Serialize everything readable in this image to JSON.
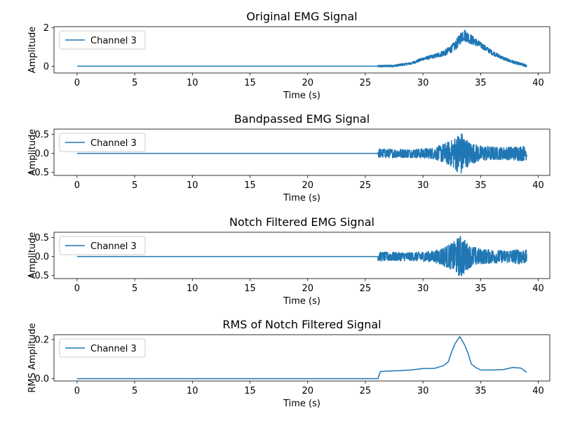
{
  "figure": {
    "background": "#ffffff",
    "line_color": "#1f77b4"
  },
  "chart_data": [
    {
      "type": "line",
      "title": "Original EMG Signal",
      "xlabel": "Time (s)",
      "ylabel": "Amplitude",
      "xlim": [
        -2,
        41
      ],
      "ylim": [
        -0.35,
        2.05
      ],
      "xticks": [
        0,
        5,
        10,
        15,
        20,
        25,
        30,
        35,
        40
      ],
      "yticks": [
        0,
        2
      ],
      "legend": {
        "position": "upper-left",
        "entries": [
          "Channel 3"
        ]
      },
      "series": [
        {
          "name": "Channel 3",
          "style": "noisy-band",
          "flat_until": 26.1,
          "flat_value": 0.0,
          "end": 39.0,
          "center_curve": [
            [
              26.1,
              0.0
            ],
            [
              27.5,
              0.02
            ],
            [
              29,
              0.15
            ],
            [
              30,
              0.38
            ],
            [
              31,
              0.52
            ],
            [
              32,
              0.72
            ],
            [
              32.8,
              1.05
            ],
            [
              33.5,
              1.65
            ],
            [
              34,
              1.45
            ],
            [
              35,
              1.1
            ],
            [
              36,
              0.7
            ],
            [
              37,
              0.4
            ],
            [
              38,
              0.18
            ],
            [
              39,
              0.02
            ]
          ],
          "half_width_curve": [
            [
              26.1,
              0.05
            ],
            [
              29,
              0.06
            ],
            [
              31,
              0.1
            ],
            [
              32.5,
              0.2
            ],
            [
              33.5,
              0.32
            ],
            [
              35,
              0.15
            ],
            [
              37,
              0.08
            ],
            [
              39,
              0.07
            ]
          ]
        }
      ]
    },
    {
      "type": "line",
      "title": "Bandpassed EMG Signal",
      "xlabel": "Time (s)",
      "ylabel": "Amplitude",
      "xlim": [
        -2,
        41
      ],
      "ylim": [
        -0.58,
        0.64
      ],
      "xticks": [
        0,
        5,
        10,
        15,
        20,
        25,
        30,
        35,
        40
      ],
      "yticks": [
        -0.5,
        0.0,
        0.5
      ],
      "legend": {
        "position": "upper-left",
        "entries": [
          "Channel 3"
        ]
      },
      "series": [
        {
          "name": "Channel 3",
          "style": "noisy-band",
          "flat_until": 26.1,
          "flat_value": 0.0,
          "end": 39.0,
          "center_curve": [
            [
              26.1,
              0.0
            ],
            [
              39,
              0.0
            ]
          ],
          "half_width_curve": [
            [
              26.1,
              0.12
            ],
            [
              29,
              0.11
            ],
            [
              31,
              0.15
            ],
            [
              32.5,
              0.35
            ],
            [
              33.3,
              0.58
            ],
            [
              34,
              0.3
            ],
            [
              35,
              0.2
            ],
            [
              37,
              0.16
            ],
            [
              38.5,
              0.2
            ],
            [
              39,
              0.17
            ]
          ]
        }
      ]
    },
    {
      "type": "line",
      "title": "Notch Filtered EMG Signal",
      "xlabel": "Time (s)",
      "ylabel": "Amplitude",
      "xlim": [
        -2,
        41
      ],
      "ylim": [
        -0.58,
        0.64
      ],
      "xticks": [
        0,
        5,
        10,
        15,
        20,
        25,
        30,
        35,
        40
      ],
      "yticks": [
        -0.5,
        0.0,
        0.5
      ],
      "legend": {
        "position": "upper-left",
        "entries": [
          "Channel 3"
        ]
      },
      "series": [
        {
          "name": "Channel 3",
          "style": "noisy-band",
          "flat_until": 26.1,
          "flat_value": 0.0,
          "end": 39.0,
          "center_curve": [
            [
              26.1,
              0.0
            ],
            [
              39,
              0.0
            ]
          ],
          "half_width_curve": [
            [
              26.1,
              0.12
            ],
            [
              29,
              0.11
            ],
            [
              31,
              0.15
            ],
            [
              32.5,
              0.35
            ],
            [
              33.3,
              0.57
            ],
            [
              34,
              0.3
            ],
            [
              35,
              0.2
            ],
            [
              37,
              0.16
            ],
            [
              38.5,
              0.2
            ],
            [
              39,
              0.17
            ]
          ]
        }
      ]
    },
    {
      "type": "line",
      "title": "RMS of Notch Filtered Signal",
      "xlabel": "Time (s)",
      "ylabel": "RMS Amplitude",
      "xlim": [
        -2,
        41
      ],
      "ylim": [
        -0.012,
        0.225
      ],
      "xticks": [
        0,
        5,
        10,
        15,
        20,
        25,
        30,
        35,
        40
      ],
      "yticks": [
        0.0,
        0.2
      ],
      "legend": {
        "position": "upper-left",
        "entries": [
          "Channel 3"
        ]
      },
      "series": [
        {
          "name": "Channel 3",
          "style": "rms-line",
          "points": [
            [
              0,
              0.0
            ],
            [
              26.0,
              0.0
            ],
            [
              26.1,
              0.0
            ],
            [
              26.3,
              0.04
            ],
            [
              27,
              0.04
            ],
            [
              28,
              0.035
            ],
            [
              29,
              0.04
            ],
            [
              30,
              0.05
            ],
            [
              31,
              0.055
            ],
            [
              31.8,
              0.07
            ],
            [
              32.2,
              0.09
            ],
            [
              32.5,
              0.14
            ],
            [
              32.8,
              0.18
            ],
            [
              33.2,
              0.21
            ],
            [
              33.6,
              0.18
            ],
            [
              33.9,
              0.13
            ],
            [
              34.2,
              0.07
            ],
            [
              34.6,
              0.055
            ],
            [
              35,
              0.05
            ],
            [
              36,
              0.048
            ],
            [
              37,
              0.052
            ],
            [
              37.8,
              0.058
            ],
            [
              38.5,
              0.05
            ],
            [
              39,
              0.03
            ]
          ]
        }
      ]
    }
  ]
}
